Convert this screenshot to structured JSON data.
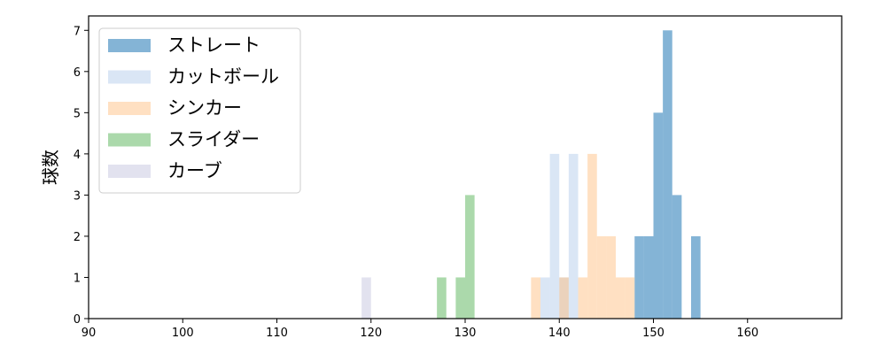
{
  "chart_data": {
    "type": "bar",
    "subtype": "histogram",
    "title": "",
    "xlabel": "",
    "ylabel": "球数",
    "xlim": [
      90,
      170
    ],
    "ylim": [
      0,
      7.35
    ],
    "xticks": [
      90,
      100,
      110,
      120,
      130,
      140,
      150,
      160
    ],
    "yticks": [
      0,
      1,
      2,
      3,
      4,
      5,
      6,
      7
    ],
    "legend_position": "top-left",
    "grid": false,
    "series": [
      {
        "name": "ストレート",
        "color": "#1f77b4",
        "alpha": 0.55,
        "bins": [
          {
            "x0": 148.0,
            "x1": 149.0,
            "count": 2
          },
          {
            "x0": 149.0,
            "x1": 150.0,
            "count": 2
          },
          {
            "x0": 150.0,
            "x1": 151.0,
            "count": 5
          },
          {
            "x0": 151.0,
            "x1": 152.0,
            "count": 7
          },
          {
            "x0": 152.0,
            "x1": 153.0,
            "count": 3
          },
          {
            "x0": 154.0,
            "x1": 155.0,
            "count": 2
          }
        ]
      },
      {
        "name": "カットボール",
        "color": "#aec7e8",
        "alpha": 0.45,
        "bins": [
          {
            "x0": 138.0,
            "x1": 139.0,
            "count": 1
          },
          {
            "x0": 139.0,
            "x1": 140.0,
            "count": 4
          },
          {
            "x0": 140.0,
            "x1": 141.0,
            "count": 1
          },
          {
            "x0": 141.0,
            "x1": 142.0,
            "count": 4
          }
        ]
      },
      {
        "name": "シンカー",
        "color": "#ffbb78",
        "alpha": 0.45,
        "bins": [
          {
            "x0": 137.0,
            "x1": 138.0,
            "count": 1
          },
          {
            "x0": 140.0,
            "x1": 141.0,
            "count": 1
          },
          {
            "x0": 142.0,
            "x1": 143.0,
            "count": 1
          },
          {
            "x0": 143.0,
            "x1": 144.0,
            "count": 4
          },
          {
            "x0": 144.0,
            "x1": 145.0,
            "count": 2
          },
          {
            "x0": 145.0,
            "x1": 146.0,
            "count": 2
          },
          {
            "x0": 146.0,
            "x1": 147.0,
            "count": 1
          },
          {
            "x0": 147.0,
            "x1": 148.0,
            "count": 1
          }
        ]
      },
      {
        "name": "スライダー",
        "color": "#2ca02c",
        "alpha": 0.4,
        "bins": [
          {
            "x0": 127.0,
            "x1": 128.0,
            "count": 1
          },
          {
            "x0": 129.0,
            "x1": 130.0,
            "count": 1
          },
          {
            "x0": 130.0,
            "x1": 131.0,
            "count": 3
          }
        ]
      },
      {
        "name": "カーブ",
        "color": "#c5c5e0",
        "alpha": 0.5,
        "bins": [
          {
            "x0": 119.0,
            "x1": 120.0,
            "count": 1
          }
        ]
      }
    ]
  }
}
